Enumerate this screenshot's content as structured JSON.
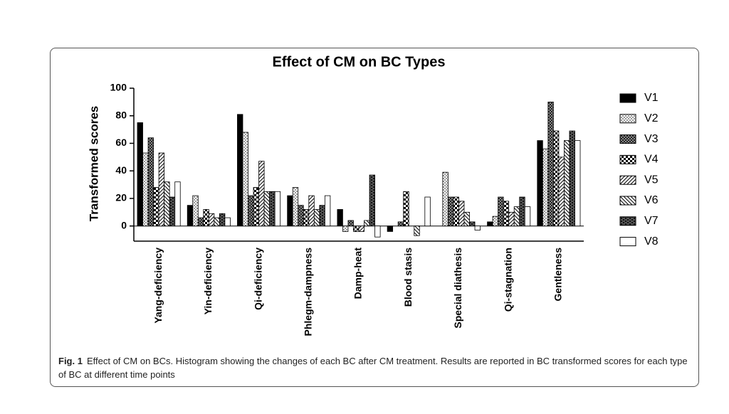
{
  "chart_data": {
    "type": "bar",
    "title": "Effect of CM on BC Types",
    "y_label": "Transformed scores",
    "categories": [
      "Yang-deficiency",
      "Yin-deficiency",
      "Qi-deficiency",
      "Phlegm-dampness",
      "Damp-heat",
      "Blood stasis",
      "Special diathesis",
      "Qi-stagnation",
      "Gentleness"
    ],
    "series": [
      {
        "name": "V1",
        "color": "#000000",
        "pattern": "solid",
        "values": [
          75,
          15,
          81,
          22,
          12,
          -4,
          0,
          3,
          62
        ]
      },
      {
        "name": "V2",
        "color": "#000000",
        "pattern": "dots",
        "values": [
          53,
          22,
          68,
          28,
          -4,
          0,
          39,
          7,
          56
        ]
      },
      {
        "name": "V3",
        "color": "#000000",
        "pattern": "fine-checker",
        "values": [
          64,
          6,
          22,
          15,
          4,
          3,
          21,
          21,
          90
        ]
      },
      {
        "name": "V4",
        "color": "#000000",
        "pattern": "checker",
        "values": [
          28,
          12,
          28,
          12,
          -4,
          25,
          21,
          18,
          69
        ]
      },
      {
        "name": "V5",
        "color": "#000000",
        "pattern": "forward-hatch",
        "values": [
          53,
          9,
          47,
          22,
          -4,
          0,
          18,
          10,
          50
        ]
      },
      {
        "name": "V6",
        "color": "#000000",
        "pattern": "back-hatch",
        "values": [
          32,
          6,
          25,
          12,
          4,
          -7,
          10,
          14,
          62
        ]
      },
      {
        "name": "V7",
        "color": "#000000",
        "pattern": "brick",
        "values": [
          21,
          9,
          25,
          15,
          37,
          0,
          3,
          21,
          69
        ]
      },
      {
        "name": "V8",
        "color": "#000000",
        "pattern": "empty",
        "values": [
          32,
          6,
          25,
          22,
          -8,
          21,
          -3,
          14,
          62
        ]
      }
    ],
    "ylim": [
      -11,
      100
    ],
    "yticks": [
      0,
      20,
      40,
      60,
      80,
      100
    ],
    "grid": false,
    "legend": "right"
  },
  "caption": {
    "label": "Fig. 1",
    "text": "Effect of CM on BCs. Histogram showing the changes of each BC after CM treatment. Results are reported in BC transformed scores for each type of BC at different time points"
  }
}
